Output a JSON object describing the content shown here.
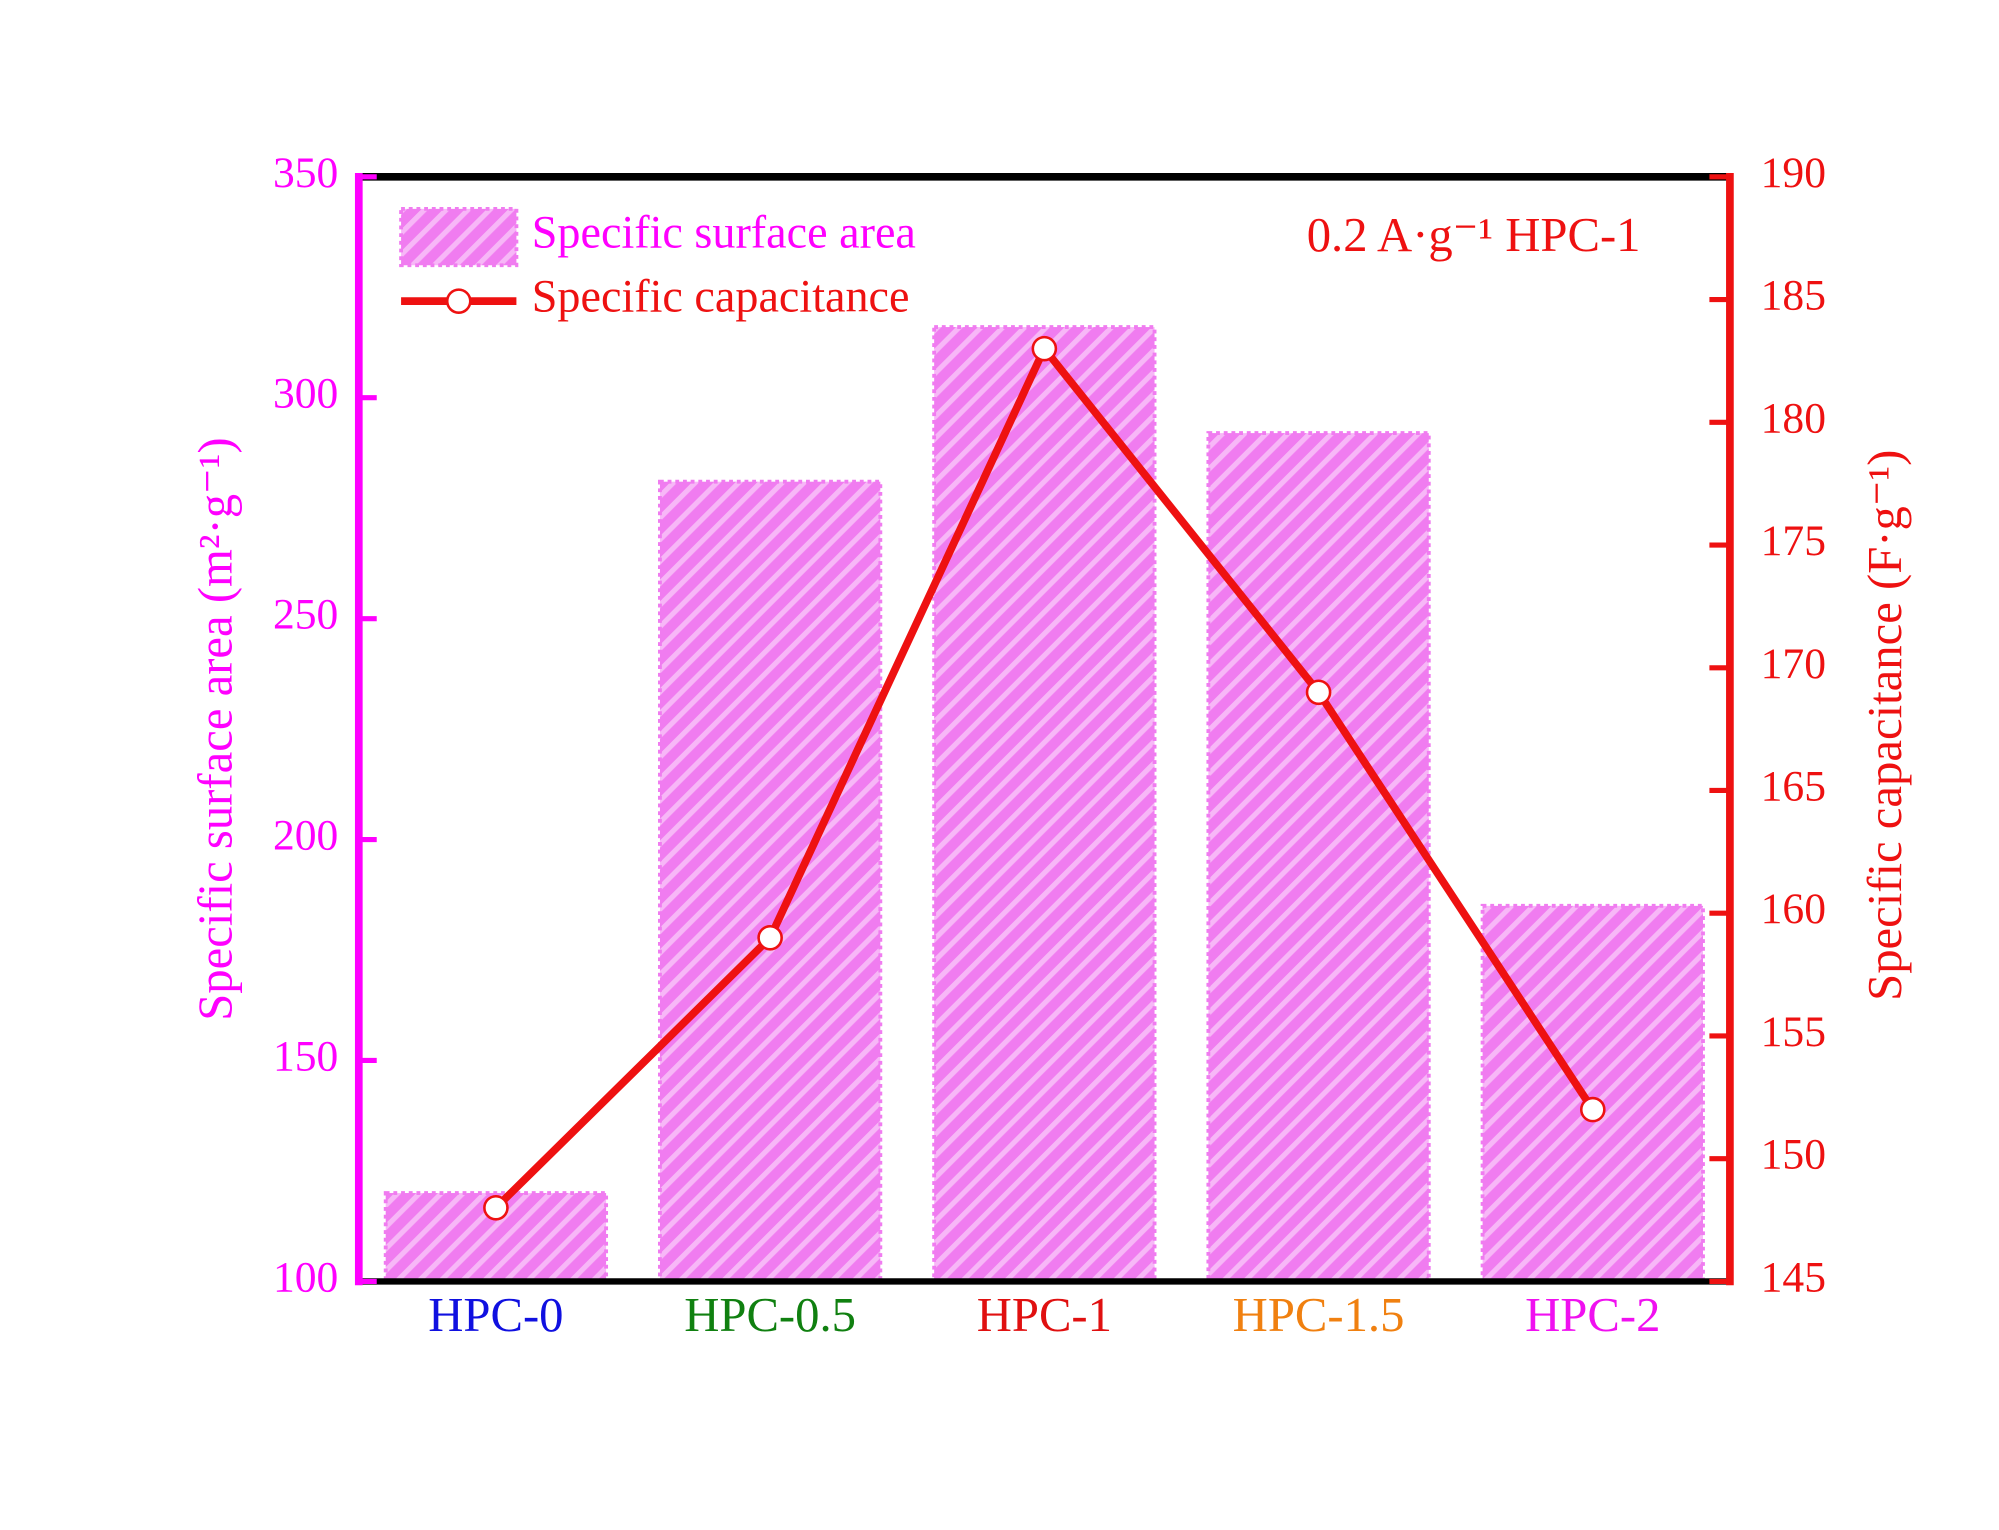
{
  "chart_data": {
    "type": "bar",
    "categories": [
      "HPC-0",
      "HPC-0.5",
      "HPC-1",
      "HPC-1.5",
      "HPC-2"
    ],
    "category_colors": [
      "#1010e0",
      "#108010",
      "#e01010",
      "#f08010",
      "#f010f0"
    ],
    "series": [
      {
        "name": "Specific surface area",
        "type": "bar",
        "color": "#f07cf0",
        "values": [
          120,
          281,
          316,
          292,
          185
        ]
      },
      {
        "name": "Specific capacitance",
        "type": "line",
        "axis": "y2",
        "color": "#ee1111",
        "values": [
          148,
          159,
          183,
          169,
          152
        ]
      }
    ],
    "ylabel": "Specific surface area (m²·g⁻¹)",
    "y2label": "Specific capacitance (F·g⁻¹)",
    "annotation": "0.2 A·g⁻¹  HPC-1",
    "ylim": [
      100,
      350
    ],
    "yticks": [
      100,
      150,
      200,
      250,
      300,
      350
    ],
    "y2lim": [
      145,
      190
    ],
    "y2ticks": [
      145,
      150,
      155,
      160,
      165,
      170,
      175,
      180,
      185,
      190
    ],
    "y_axis_color": "#ff00ff",
    "y2_axis_color": "#ee1111",
    "legend": "upper left"
  }
}
